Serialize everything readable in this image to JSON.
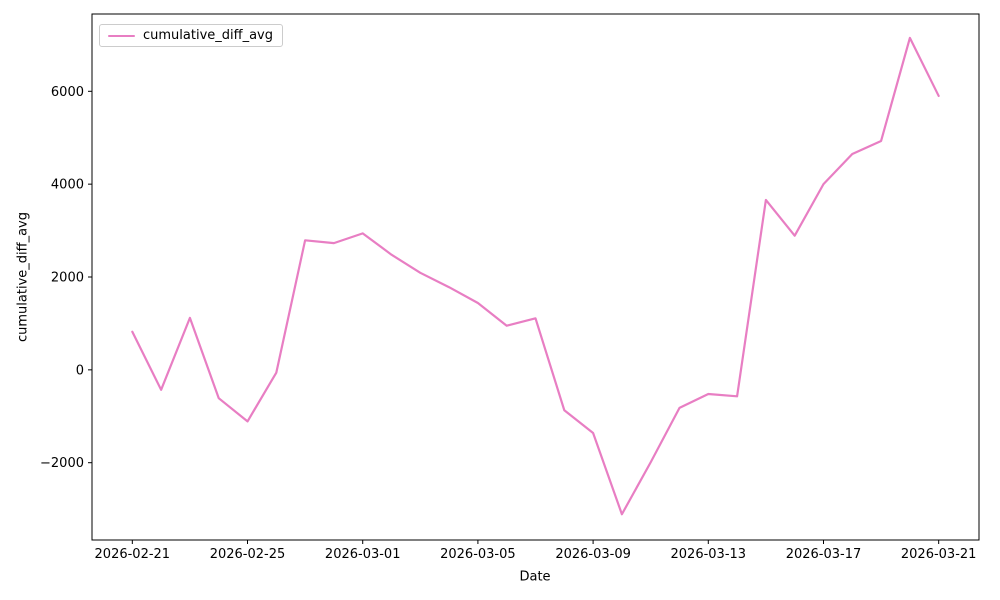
{
  "figure": {
    "background": "#ffffff",
    "spine_color": "#000000",
    "tick_color": "#000000"
  },
  "chart_data": {
    "type": "line",
    "title": "",
    "xlabel": "Date",
    "ylabel": "cumulative_diff_avg",
    "grid": false,
    "legend": {
      "position": "upper-left",
      "label": "cumulative_diff_avg"
    },
    "x": [
      "2026-02-21",
      "2026-02-22",
      "2026-02-23",
      "2026-02-24",
      "2026-02-25",
      "2026-02-26",
      "2026-02-27",
      "2026-02-28",
      "2026-03-01",
      "2026-03-02",
      "2026-03-03",
      "2026-03-04",
      "2026-03-05",
      "2026-03-06",
      "2026-03-07",
      "2026-03-08",
      "2026-03-09",
      "2026-03-10",
      "2026-03-11",
      "2026-03-12",
      "2026-03-13",
      "2026-03-14",
      "2026-03-15",
      "2026-03-16",
      "2026-03-17",
      "2026-03-18",
      "2026-03-19",
      "2026-03-20",
      "2026-03-21"
    ],
    "series": [
      {
        "name": "cumulative_diff_avg",
        "color": "#e87ec3",
        "values": [
          820,
          -430,
          1120,
          -610,
          -1110,
          -60,
          2790,
          2730,
          2940,
          2480,
          2090,
          1780,
          1440,
          950,
          1110,
          -870,
          -1360,
          -3110,
          -1990,
          -820,
          -520,
          -570,
          3660,
          2890,
          4000,
          4650,
          4930,
          7150,
          5900
        ]
      }
    ],
    "xtick_day_indices": [
      0,
      4,
      8,
      12,
      16,
      20,
      24,
      28
    ],
    "xtick_labels": [
      "2026-02-21",
      "2026-02-25",
      "2026-03-01",
      "2026-03-05",
      "2026-03-09",
      "2026-03-13",
      "2026-03-17",
      "2026-03-21"
    ],
    "ytick_values": [
      -2000,
      0,
      2000,
      4000,
      6000
    ],
    "ytick_labels": [
      "−2000",
      "0",
      "2000",
      "4000",
      "6000"
    ],
    "ylim": [
      -3665,
      7665
    ],
    "xlim_days": [
      -1.4,
      29.4
    ]
  }
}
